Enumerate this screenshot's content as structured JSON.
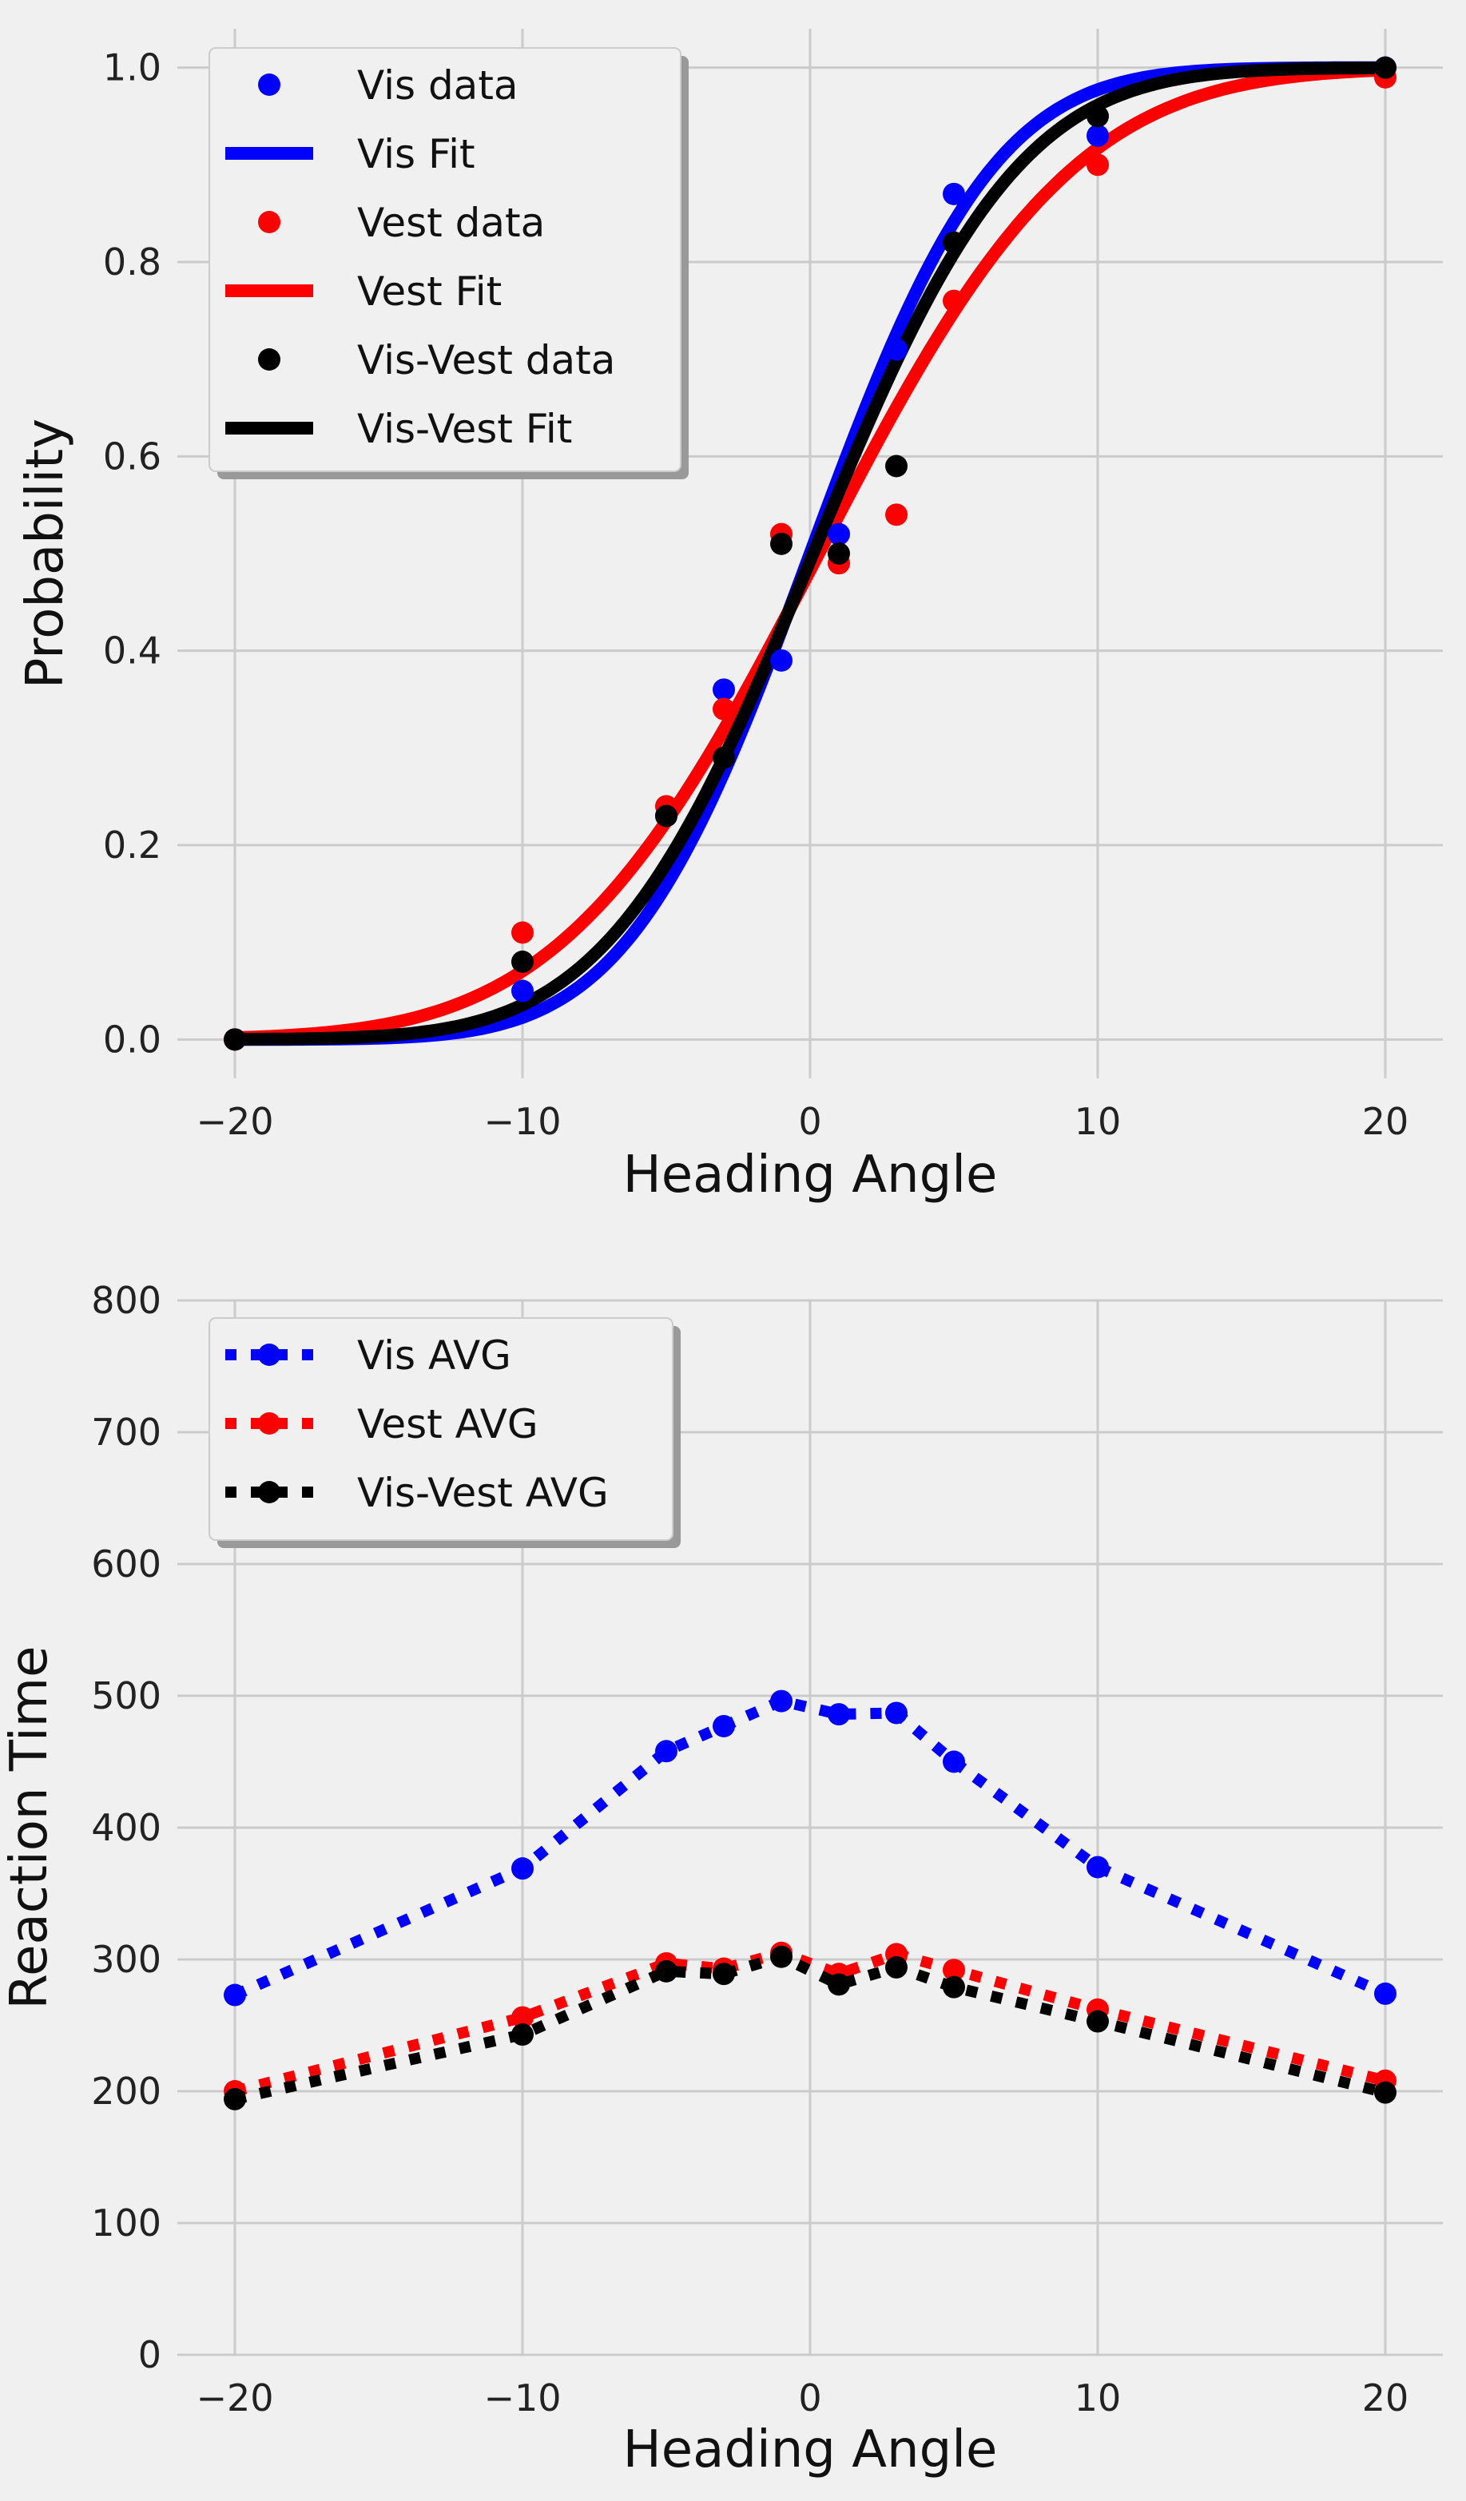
{
  "chart_data": [
    {
      "type": "scatter",
      "subtype": "psychometric-fit",
      "xlabel": "Heading Angle",
      "ylabel": "Probability",
      "xlim": [
        -22,
        22
      ],
      "ylim": [
        -0.04,
        1.04
      ],
      "xticks": [
        -20,
        -10,
        0,
        10,
        20
      ],
      "xtick_labels": [
        "−20",
        "−10",
        "0",
        "10",
        "20"
      ],
      "yticks": [
        0.0,
        0.2,
        0.4,
        0.6,
        0.8,
        1.0
      ],
      "ytick_labels": [
        "0.0",
        "0.2",
        "0.4",
        "0.6",
        "0.8",
        "1.0"
      ],
      "grid": true,
      "legend_position": "top-left",
      "x": [
        -20,
        -10,
        -5,
        -3,
        -1,
        1,
        3,
        5,
        10,
        20
      ],
      "series": [
        {
          "name": "Vis data",
          "kind": "points",
          "color": "#0000ff",
          "y": [
            0.0,
            0.05,
            0.23,
            0.36,
            0.39,
            0.52,
            0.71,
            0.87,
            0.93,
            1.0
          ]
        },
        {
          "name": "Vis Fit",
          "kind": "fit",
          "color": "#0000ff",
          "mu": 0.0,
          "sigma": 5.0
        },
        {
          "name": "Vest data",
          "kind": "points",
          "color": "#ff0000",
          "y": [
            0.0,
            0.11,
            0.24,
            0.34,
            0.52,
            0.49,
            0.54,
            0.76,
            0.9,
            0.99
          ]
        },
        {
          "name": "Vest Fit",
          "kind": "fit",
          "color": "#ff0000",
          "mu": 0.3,
          "sigma": 7.0
        },
        {
          "name": "Vis-Vest data",
          "kind": "points",
          "color": "#000000",
          "y": [
            0.0,
            0.08,
            0.23,
            0.29,
            0.51,
            0.5,
            0.59,
            0.82,
            0.95,
            1.0
          ]
        },
        {
          "name": "Vis-Vest Fit",
          "kind": "fit",
          "color": "#000000",
          "mu": 0.1,
          "sigma": 5.6
        }
      ]
    },
    {
      "type": "line",
      "style": "dotted-with-markers",
      "xlabel": "Heading Angle",
      "ylabel": "Reaction Time",
      "xlim": [
        -22,
        22
      ],
      "ylim": [
        0,
        800
      ],
      "xticks": [
        -20,
        -10,
        0,
        10,
        20
      ],
      "xtick_labels": [
        "−20",
        "−10",
        "0",
        "10",
        "20"
      ],
      "yticks": [
        0,
        100,
        200,
        300,
        400,
        500,
        600,
        700,
        800
      ],
      "ytick_labels": [
        "0",
        "100",
        "200",
        "300",
        "400",
        "500",
        "600",
        "700",
        "800"
      ],
      "grid": true,
      "legend_position": "top-left",
      "x": [
        -20,
        -10,
        -5,
        -3,
        -1,
        1,
        3,
        5,
        10,
        20
      ],
      "series": [
        {
          "name": "Vis AVG",
          "color": "#0000ff",
          "values": [
            273,
            369,
            458,
            477,
            496,
            486,
            487,
            450,
            370,
            274
          ]
        },
        {
          "name": "Vest AVG",
          "color": "#ff0000",
          "values": [
            200,
            256,
            297,
            293,
            305,
            289,
            304,
            292,
            262,
            208
          ]
        },
        {
          "name": "Vis-Vest AVG",
          "color": "#000000",
          "values": [
            194,
            243,
            291,
            289,
            302,
            281,
            294,
            279,
            253,
            199
          ]
        }
      ]
    }
  ]
}
